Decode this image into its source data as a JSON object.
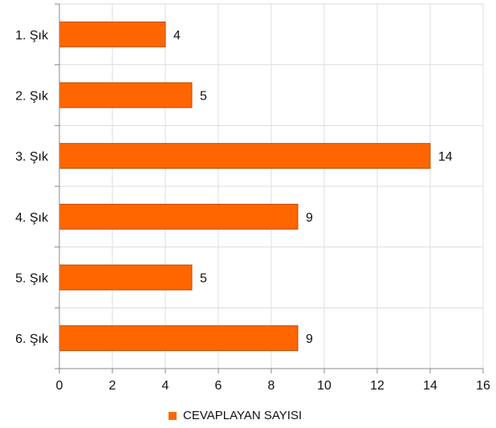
{
  "chart_data": {
    "type": "bar",
    "orientation": "horizontal",
    "categories": [
      "1. Şık",
      "2. Şık",
      "3. Şık",
      "4. Şık",
      "5. Şık",
      "6. Şık"
    ],
    "series": [
      {
        "name": "CEVAPLAYAN SAYISI",
        "values": [
          4,
          5,
          14,
          9,
          5,
          9
        ],
        "color": "#ff6600"
      }
    ],
    "xlim": [
      0,
      16
    ],
    "xticks": [
      0,
      2,
      4,
      6,
      8,
      10,
      12,
      14,
      16
    ],
    "grid": true,
    "legend_position": "bottom",
    "data_labels": true
  },
  "colors": {
    "bar": "#ff6600",
    "bar_border": "#b84a00",
    "grid": "#dddddd",
    "axis": "#888888"
  }
}
